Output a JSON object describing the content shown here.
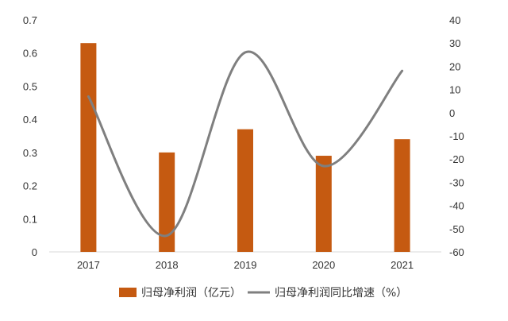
{
  "chart_data": {
    "type": "bar",
    "title": "",
    "categories": [
      "2017",
      "2018",
      "2019",
      "2020",
      "2021"
    ],
    "series": [
      {
        "name": "归母净利润（亿元）",
        "type": "bar",
        "axis": "left",
        "color": "#C55A11",
        "values": [
          0.63,
          0.3,
          0.37,
          0.29,
          0.34
        ]
      },
      {
        "name": "归母净利润同比增速（%）",
        "type": "line",
        "axis": "right",
        "smooth": true,
        "color": "#7F7F7F",
        "values": [
          7,
          -53,
          26,
          -23,
          18
        ]
      }
    ],
    "y_left": {
      "min": 0,
      "max": 0.7,
      "step": 0.1,
      "ticks": [
        "0",
        "0.1",
        "0.2",
        "0.3",
        "0.4",
        "0.5",
        "0.6",
        "0.7"
      ]
    },
    "y_right": {
      "min": -60,
      "max": 40,
      "step": 10,
      "ticks": [
        "-60",
        "-50",
        "-40",
        "-30",
        "-20",
        "-10",
        "0",
        "10",
        "20",
        "30",
        "40"
      ]
    },
    "grid": false,
    "legend_position": "bottom"
  }
}
